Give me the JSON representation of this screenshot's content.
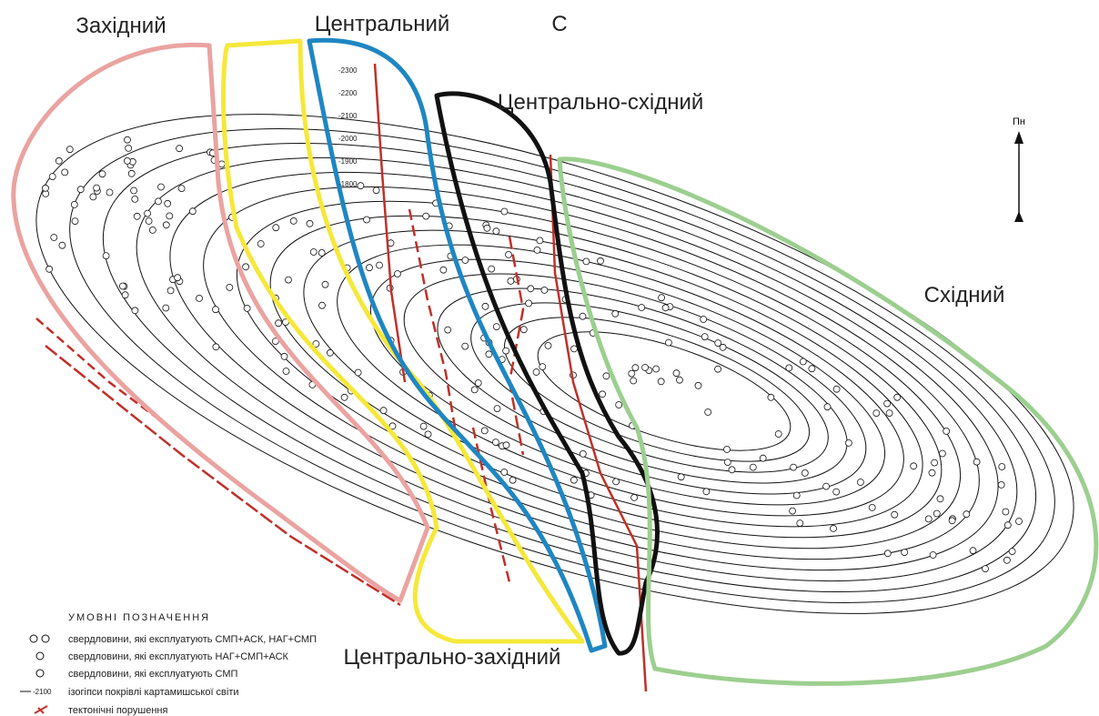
{
  "header": {
    "north": "Пн",
    "top_letter": "С"
  },
  "zones": [
    {
      "label": "Західний"
    },
    {
      "label": "Центральний"
    },
    {
      "label": "Центрально-східний"
    },
    {
      "label": "Східний"
    },
    {
      "label": "Центрально-західний"
    }
  ],
  "contour_labels": [
    "-2300",
    "-2200",
    "-2100",
    "-2000",
    "-1900",
    "-1800"
  ],
  "legend": {
    "title": "УМОВНІ ПОЗНАЧЕННЯ",
    "items": [
      {
        "label": "свердловини, які експлуатують СМП+АСК, НАГ+СМП"
      },
      {
        "label": "свердловини, які експлуатують НАГ+СМП+АСК"
      },
      {
        "label": "свердловини, які експлуатують СМП"
      },
      {
        "symbol_label": "-2100",
        "label": "ізогіпси покрівлі картамишської світи"
      },
      {
        "label": "тектонічні порушення"
      }
    ]
  }
}
